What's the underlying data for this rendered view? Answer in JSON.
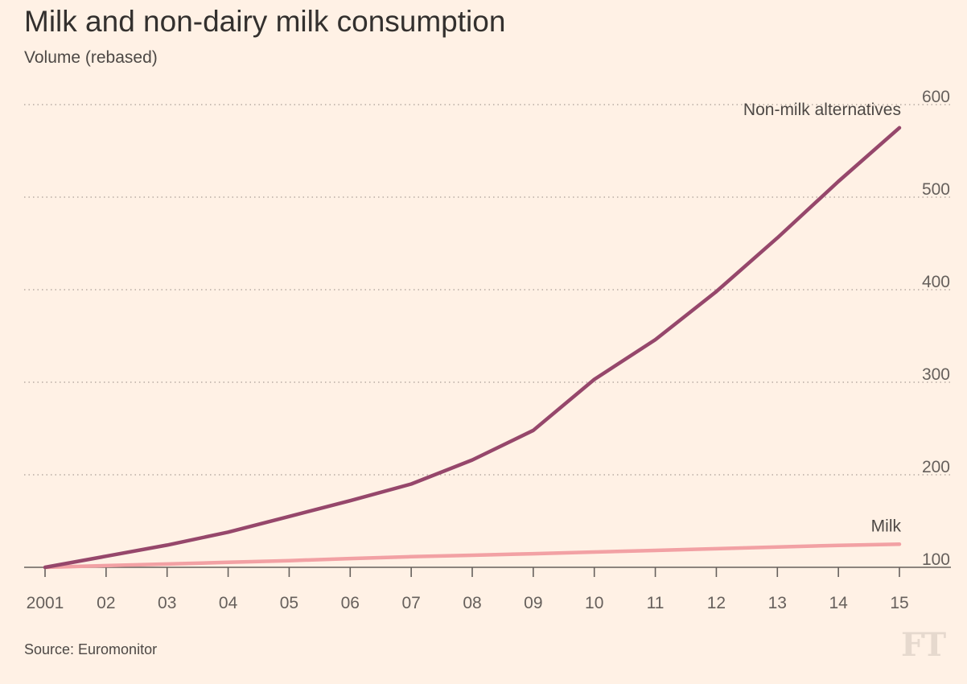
{
  "chart_data": {
    "type": "line",
    "title": "Milk and non-dairy milk consumption",
    "subtitle": "Volume (rebased)",
    "source": "Source: Euromonitor",
    "logo": "FT",
    "x": [
      2001,
      2002,
      2003,
      2004,
      2005,
      2006,
      2007,
      2008,
      2009,
      2010,
      2011,
      2012,
      2013,
      2014,
      2015
    ],
    "x_tick_labels": [
      "2001",
      "02",
      "03",
      "04",
      "05",
      "06",
      "07",
      "08",
      "09",
      "10",
      "11",
      "12",
      "13",
      "14",
      "15"
    ],
    "y_ticks": [
      100,
      200,
      300,
      400,
      500,
      600
    ],
    "y_tick_labels": [
      "100",
      "200",
      "300",
      "400",
      "500",
      "600"
    ],
    "ylim": [
      100,
      600
    ],
    "grid": true,
    "y_axis_side": "right",
    "series": [
      {
        "name": "Non-milk alternatives",
        "color": "#96476b",
        "values": [
          100,
          112,
          124,
          138,
          155,
          172,
          190,
          216,
          248,
          303,
          346,
          398,
          456,
          517,
          575
        ]
      },
      {
        "name": "Milk",
        "color": "#f2a1a4",
        "values": [
          100,
          101.8,
          103.6,
          105.4,
          107.2,
          109.5,
          111.5,
          113,
          114.7,
          116.5,
          118.3,
          120.1,
          121.9,
          123.7,
          125
        ]
      }
    ]
  }
}
